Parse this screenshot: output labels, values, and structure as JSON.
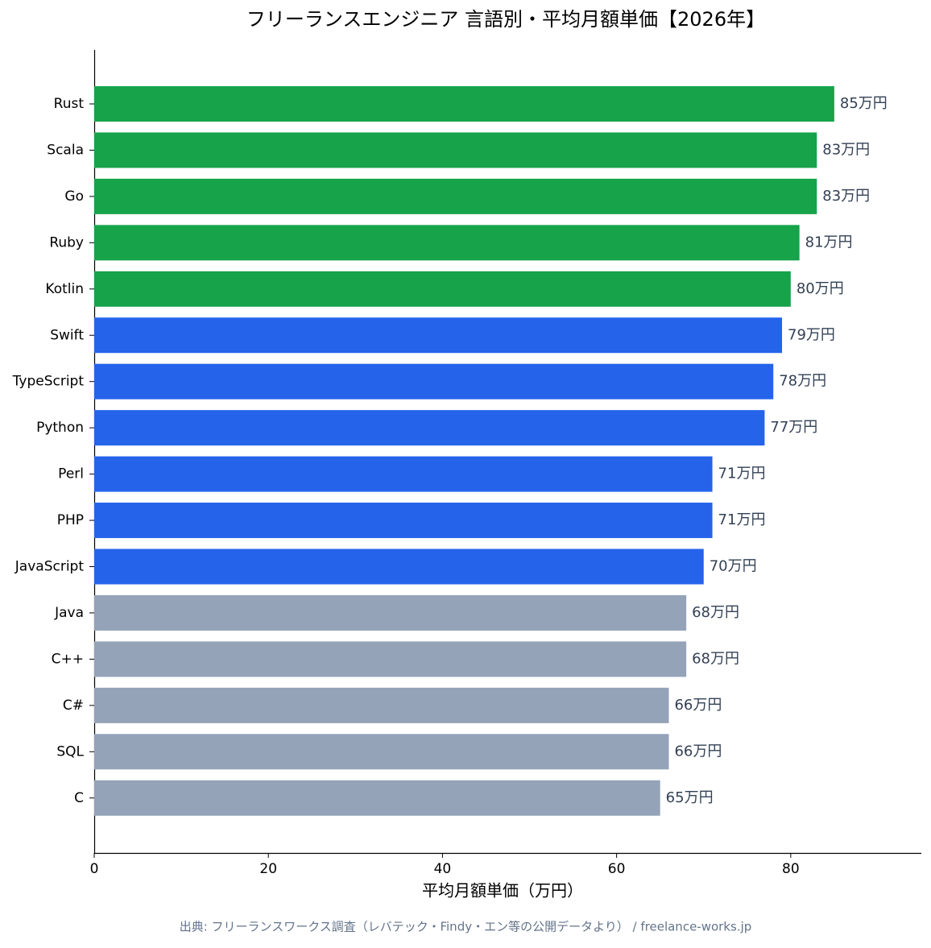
{
  "chart_data": {
    "type": "barh",
    "title": "フリーランスエンジニア 言語別・平均月額単価【2026年】",
    "x_label": "平均月額単価（万円）",
    "source": "出典: フリーランスワークス調査（レバテック・Findy・エン等の公開データより） / freelance-works.jp",
    "categories": [
      "Rust",
      "Scala",
      "Go",
      "Ruby",
      "Kotlin",
      "Swift",
      "TypeScript",
      "Python",
      "Perl",
      "PHP",
      "JavaScript",
      "Java",
      "C++",
      "C#",
      "SQL",
      "C"
    ],
    "values": [
      85,
      83,
      83,
      81,
      80,
      79,
      78,
      77,
      71,
      71,
      70,
      68,
      68,
      66,
      66,
      65
    ],
    "value_labels": [
      "85万円",
      "83万円",
      "83万円",
      "81万円",
      "80万円",
      "79万円",
      "78万円",
      "77万円",
      "71万円",
      "71万円",
      "70万円",
      "68万円",
      "68万円",
      "66万円",
      "66万円",
      "65万円"
    ],
    "colors": [
      "#16a34a",
      "#16a34a",
      "#16a34a",
      "#16a34a",
      "#16a34a",
      "#2563eb",
      "#2563eb",
      "#2563eb",
      "#2563eb",
      "#2563eb",
      "#2563eb",
      "#94a3b8",
      "#94a3b8",
      "#94a3b8",
      "#94a3b8",
      "#94a3b8"
    ],
    "xlim": [
      0,
      95
    ],
    "xticks": [
      0,
      20,
      40,
      60,
      80
    ]
  }
}
